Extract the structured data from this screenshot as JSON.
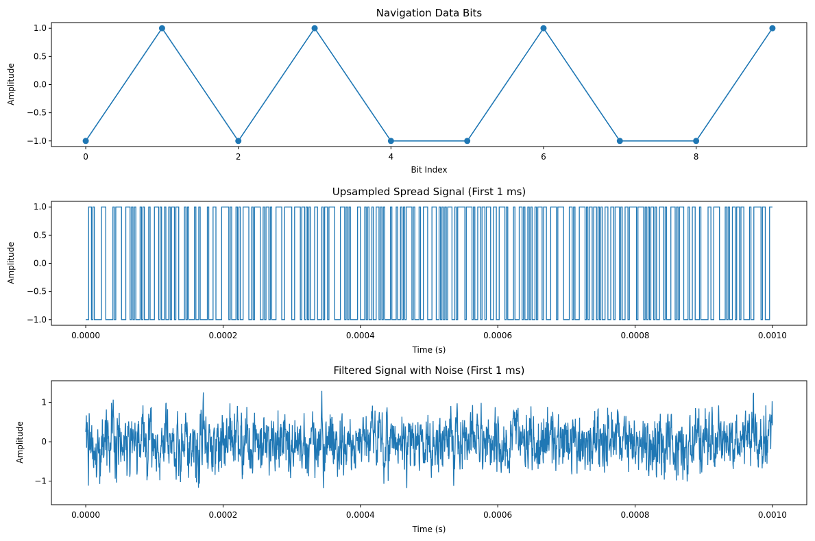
{
  "chart_data": [
    {
      "type": "line",
      "title": "Navigation Data Bits",
      "xlabel": "Bit Index",
      "ylabel": "Amplitude",
      "xlim": [
        -0.45,
        9.45
      ],
      "ylim": [
        -1.1,
        1.1
      ],
      "xticks": [
        0,
        2,
        4,
        6,
        8
      ],
      "xtick_labels": [
        "0",
        "2",
        "4",
        "6",
        "8"
      ],
      "yticks": [
        -1.0,
        -0.5,
        0.0,
        0.5,
        1.0
      ],
      "ytick_labels": [
        "−1.0",
        "−0.5",
        "0.0",
        "0.5",
        "1.0"
      ],
      "markers": true,
      "series": [
        {
          "x": [
            0,
            1,
            2,
            3,
            4,
            5,
            6,
            7,
            8,
            9
          ],
          "y": [
            -1,
            1,
            -1,
            1,
            -1,
            -1,
            1,
            -1,
            -1,
            1
          ]
        }
      ]
    },
    {
      "type": "line",
      "title": "Upsampled Spread Signal (First 1 ms)",
      "xlabel": "Time (s)",
      "ylabel": "Amplitude",
      "xlim": [
        -5e-05,
        0.00105
      ],
      "ylim": [
        -1.1,
        1.1
      ],
      "xticks": [
        0,
        0.0002,
        0.0004,
        0.0006,
        0.0008,
        0.001
      ],
      "xtick_labels": [
        "0.0000",
        "0.0002",
        "0.0004",
        "0.0006",
        "0.0008",
        "0.0010"
      ],
      "yticks": [
        -1.0,
        -0.5,
        0.0,
        0.5,
        1.0
      ],
      "ytick_labels": [
        "−1.0",
        "−0.5",
        "0.0",
        "0.5",
        "1.0"
      ],
      "series": [
        {
          "x_range": [
            0,
            0.001
          ],
          "y_min": -1,
          "y_max": 1,
          "note_values_binary": true
        }
      ]
    },
    {
      "type": "line",
      "title": "Filtered Signal with Noise (First 1 ms)",
      "xlabel": "Time (s)",
      "ylabel": "Amplitude",
      "xlim": [
        -5e-05,
        0.00105
      ],
      "ylim": [
        -1.6,
        1.55
      ],
      "xticks": [
        0,
        0.0002,
        0.0004,
        0.0006,
        0.0008,
        0.001
      ],
      "xtick_labels": [
        "0.0000",
        "0.0002",
        "0.0004",
        "0.0006",
        "0.0008",
        "0.0010"
      ],
      "yticks": [
        -1,
        0,
        1
      ],
      "ytick_labels": [
        "−1",
        "0",
        "1"
      ],
      "series": [
        {
          "x_range": [
            0,
            0.001
          ],
          "y_min": -1.5,
          "y_max": 1.42
        }
      ]
    }
  ],
  "colors": {
    "line": "#1f77b4",
    "axes": "#000000",
    "background": "#ffffff"
  }
}
